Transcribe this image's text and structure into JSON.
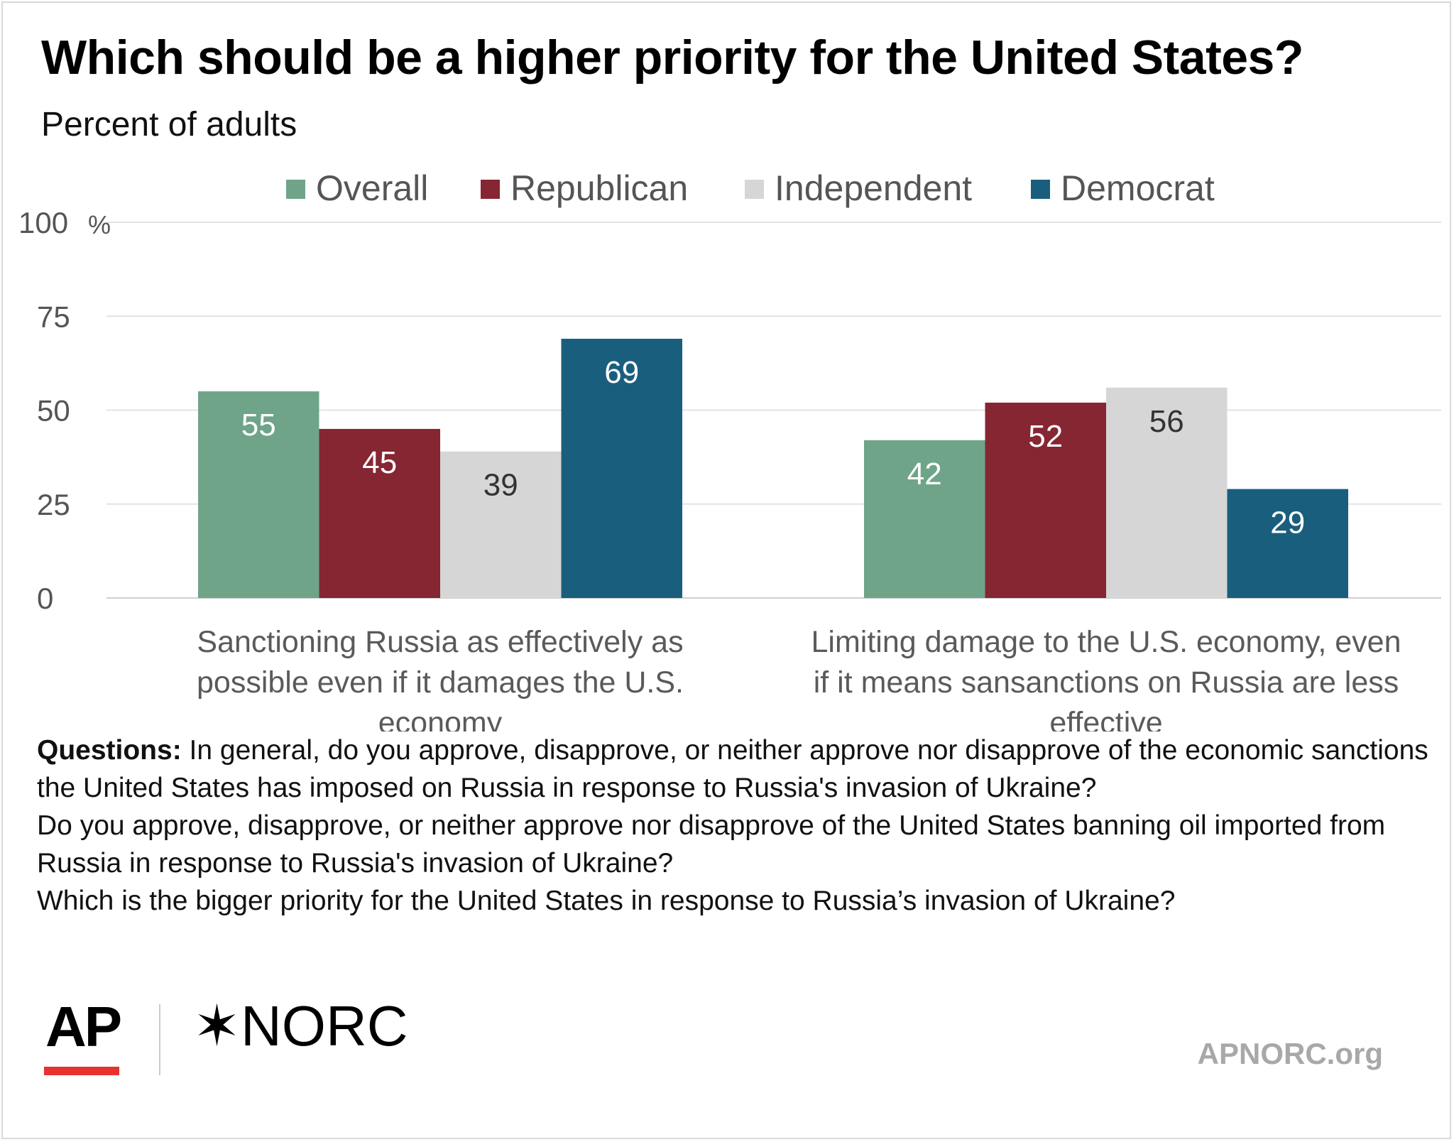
{
  "header": {
    "title": "Which should be a higher priority for the United States?",
    "subtitle": "Percent of adults"
  },
  "chart_data": {
    "type": "bar",
    "y_unit": "%",
    "ylim": [
      0,
      100
    ],
    "yticks": [
      0,
      25,
      50,
      75,
      100
    ],
    "grid": true,
    "legend_position": "top",
    "categories": [
      "Sanctioning Russia as effectively as possible even if it damages the U.S. economy",
      "Limiting damage to the U.S. economy, even if it means sansanctions on Russia are less effective"
    ],
    "category_lines": [
      [
        "Sanctioning Russia as effectively as",
        "possible even if it damages the U.S.",
        "economy"
      ],
      [
        "Limiting damage to the U.S. economy, even",
        "if it means sansanctions on Russia are less",
        "effective"
      ]
    ],
    "series": [
      {
        "name": "Overall",
        "color": "#70a489",
        "label_color": "#ffffff",
        "values": [
          55,
          42
        ]
      },
      {
        "name": "Republican",
        "color": "#862633",
        "label_color": "#ffffff",
        "values": [
          45,
          52
        ]
      },
      {
        "name": "Independent",
        "color": "#d6d6d6",
        "label_color": "#333333",
        "values": [
          39,
          56
        ]
      },
      {
        "name": "Democrat",
        "color": "#1a5e7e",
        "label_color": "#ffffff",
        "values": [
          69,
          29
        ]
      }
    ]
  },
  "notes": {
    "label": "Questions:",
    "q1": "In general, do you approve, disapprove, or neither approve nor disapprove of the economic sanctions the United States has imposed on Russia in response to Russia's invasion of Ukraine?",
    "q2": "Do you approve, disapprove, or neither approve nor disapprove of the United States banning oil imported from Russia in response to Russia's invasion of Ukraine?",
    "q3": "Which is the bigger priority for the United States in response to Russia’s invasion of Ukraine?"
  },
  "footer": {
    "logo_ap": "AP",
    "logo_norc": "✶NORC",
    "url": "APNORC.org"
  }
}
